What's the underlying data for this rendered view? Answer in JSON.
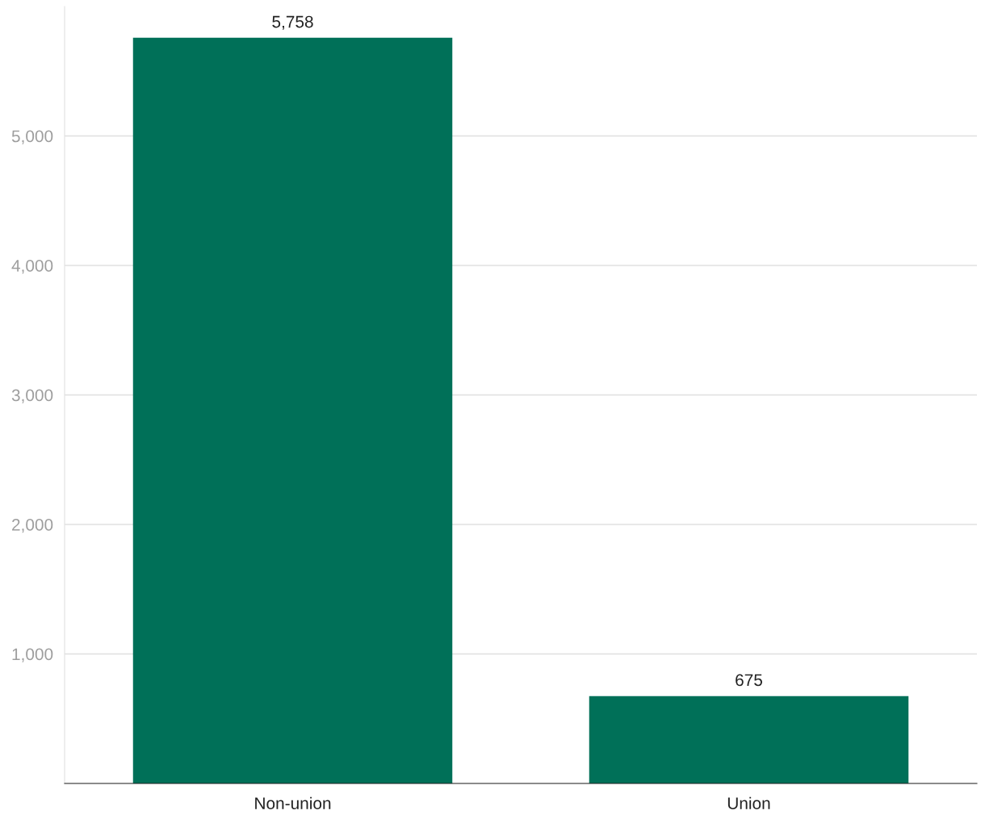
{
  "chart_data": {
    "type": "bar",
    "categories": [
      "Non-union",
      "Union"
    ],
    "values": [
      5758,
      675
    ],
    "value_labels": [
      "5,758",
      "675"
    ],
    "color": "#007058",
    "ylim": [
      0,
      6000
    ],
    "yticks": [
      {
        "value": 0,
        "label": null
      },
      {
        "value": 1000,
        "label": "1,000"
      },
      {
        "value": 2000,
        "label": "2,000"
      },
      {
        "value": 3000,
        "label": "3,000"
      },
      {
        "value": 4000,
        "label": "4,000"
      },
      {
        "value": 5000,
        "label": "5,000"
      }
    ],
    "grid": "y"
  }
}
